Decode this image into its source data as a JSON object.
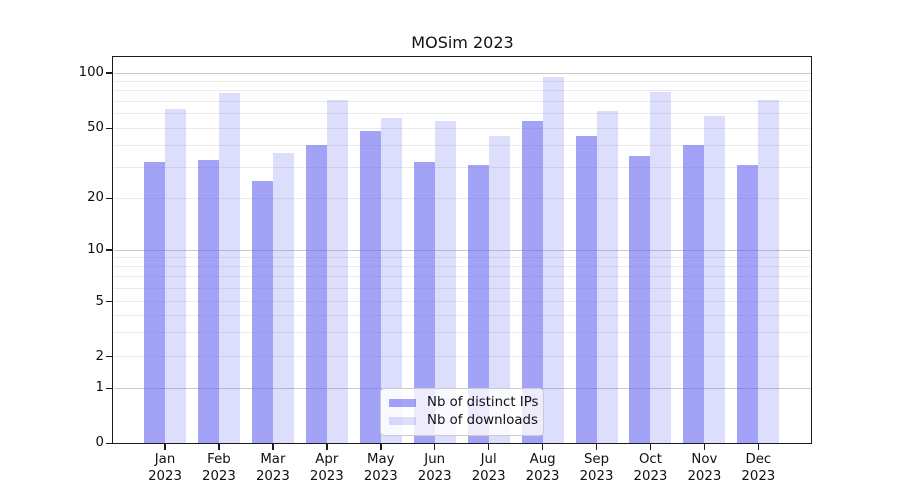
{
  "title": "MOSim 2023",
  "legend": {
    "items": [
      {
        "label": "Nb of distinct IPs"
      },
      {
        "label": "Nb of downloads"
      }
    ]
  },
  "chart_data": {
    "type": "bar",
    "title": "MOSim 2023",
    "categories": [
      "Jan 2023",
      "Feb 2023",
      "Mar 2023",
      "Apr 2023",
      "May 2023",
      "Jun 2023",
      "Jul 2023",
      "Aug 2023",
      "Sep 2023",
      "Oct 2023",
      "Nov 2023",
      "Dec 2023"
    ],
    "series": [
      {
        "name": "Nb of distinct IPs",
        "color": "#6464f0",
        "alpha": 0.6,
        "values": [
          32,
          33,
          25,
          40,
          48,
          32,
          31,
          55,
          45,
          35,
          40,
          31
        ]
      },
      {
        "name": "Nb of downloads",
        "color": "#6464f0",
        "alpha": 0.22,
        "values": [
          64,
          78,
          36,
          71,
          57,
          55,
          45,
          95,
          62,
          79,
          58,
          71
        ]
      }
    ],
    "yscale": "symlog",
    "ylim": [
      0,
      120
    ],
    "yticks": [
      0,
      1,
      2,
      5,
      10,
      20,
      50,
      100
    ],
    "minor_gridlines": [
      2,
      3,
      4,
      5,
      6,
      7,
      8,
      9,
      20,
      30,
      40,
      50,
      60,
      70,
      80,
      90
    ],
    "major_gridlines": [
      1,
      10,
      100
    ],
    "xlabel": "",
    "ylabel": "",
    "grid": true,
    "legend_position": "lower center"
  }
}
